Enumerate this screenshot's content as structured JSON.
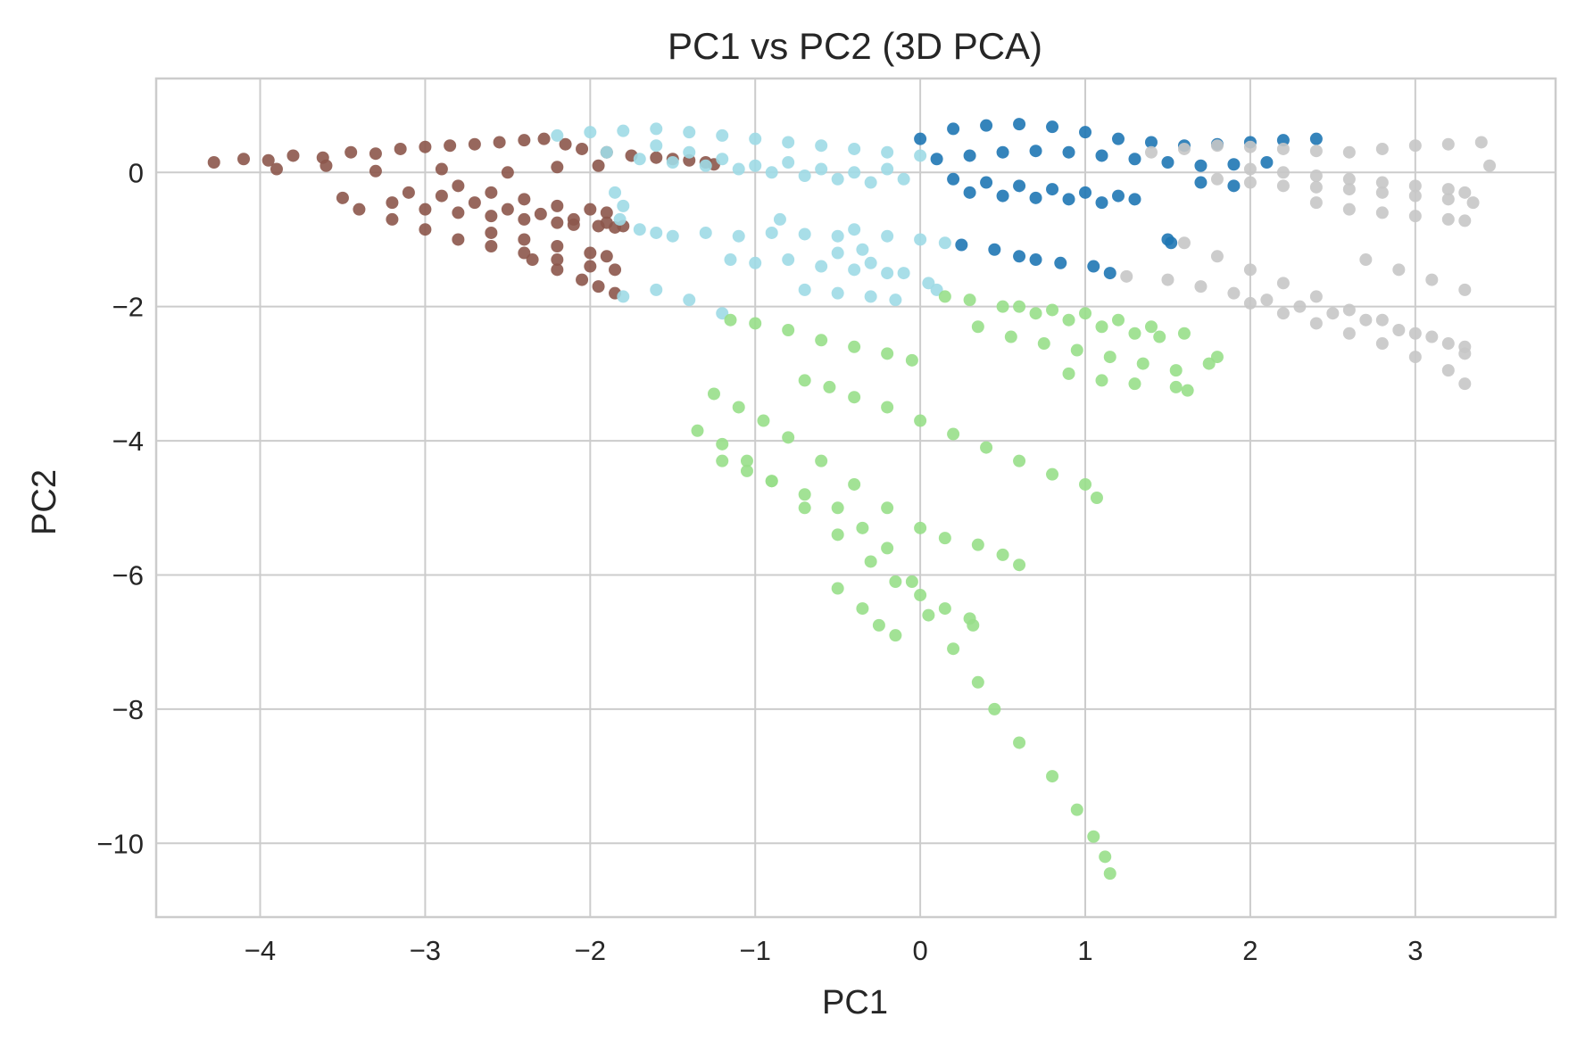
{
  "chart_data": {
    "type": "scatter",
    "title": "PC1 vs PC2 (3D PCA)",
    "xlabel": "PC1",
    "ylabel": "PC2",
    "xlim": [
      -4.63,
      3.85
    ],
    "ylim": [
      -11.1,
      1.4
    ],
    "xticks": [
      -4,
      -3,
      -2,
      -1,
      0,
      1,
      2,
      3
    ],
    "yticks": [
      0,
      -2,
      -4,
      -6,
      -8,
      -10
    ],
    "xtick_labels": [
      "−4",
      "−3",
      "−2",
      "−1",
      "0",
      "1",
      "2",
      "3"
    ],
    "ytick_labels": [
      "0",
      "−2",
      "−4",
      "−6",
      "−8",
      "−10"
    ],
    "grid": true,
    "legend": false,
    "series": [
      {
        "color": "#8c564b",
        "x": [
          -4.28,
          -4.1,
          -3.95,
          -3.8,
          -3.62,
          -3.45,
          -3.3,
          -3.15,
          -3.0,
          -2.85,
          -2.7,
          -2.55,
          -2.4,
          -2.28,
          -2.15,
          -2.05,
          -1.9,
          -1.75,
          -1.6,
          -1.5,
          -1.4,
          -1.3,
          -1.25,
          -3.5,
          -3.2,
          -3.0,
          -2.8,
          -2.6,
          -2.4,
          -2.2,
          -2.1,
          -1.95,
          -1.85,
          -3.1,
          -2.9,
          -2.7,
          -2.5,
          -2.3,
          -2.1,
          -1.9,
          -1.8,
          -3.4,
          -3.2,
          -3.0,
          -2.8,
          -2.6,
          -2.4,
          -2.2,
          -2.0,
          -1.85,
          -2.8,
          -2.6,
          -2.4,
          -2.2,
          -2.0,
          -1.9,
          -2.6,
          -2.4,
          -2.2,
          -2.0,
          -1.9,
          -2.35,
          -2.2,
          -2.05,
          -1.95,
          -1.85,
          -3.9,
          -3.6,
          -3.3,
          -2.9,
          -2.5,
          -2.2,
          -1.95
        ],
        "y": [
          0.15,
          0.2,
          0.18,
          0.25,
          0.22,
          0.3,
          0.28,
          0.35,
          0.38,
          0.4,
          0.42,
          0.45,
          0.48,
          0.5,
          0.42,
          0.35,
          0.3,
          0.25,
          0.22,
          0.2,
          0.18,
          0.15,
          0.12,
          -0.38,
          -0.45,
          -0.55,
          -0.6,
          -0.65,
          -0.7,
          -0.75,
          -0.78,
          -0.8,
          -0.82,
          -0.3,
          -0.35,
          -0.45,
          -0.55,
          -0.62,
          -0.7,
          -0.75,
          -0.8,
          -0.55,
          -0.7,
          -0.85,
          -1.0,
          -1.1,
          -1.2,
          -1.3,
          -1.4,
          -1.45,
          -0.2,
          -0.3,
          -0.4,
          -0.5,
          -0.55,
          -0.6,
          -0.9,
          -1.0,
          -1.1,
          -1.2,
          -1.25,
          -1.3,
          -1.45,
          -1.6,
          -1.7,
          -1.8,
          0.05,
          0.1,
          0.02,
          0.05,
          0.0,
          0.08,
          0.1
        ]
      },
      {
        "color": "#9edae5",
        "x": [
          -2.2,
          -2.0,
          -1.8,
          -1.6,
          -1.4,
          -1.2,
          -1.0,
          -0.8,
          -0.6,
          -0.4,
          -0.2,
          0.0,
          -1.9,
          -1.7,
          -1.5,
          -1.3,
          -1.1,
          -0.9,
          -0.7,
          -0.5,
          -0.3,
          -0.1,
          -1.6,
          -1.4,
          -1.2,
          -1.0,
          -0.8,
          -0.6,
          -0.4,
          -0.2,
          -1.85,
          -1.8,
          -1.82,
          -1.7,
          -1.6,
          -1.5,
          -1.3,
          -1.1,
          -0.9,
          -0.7,
          -0.5,
          -0.4,
          -0.2,
          0.0,
          0.15,
          -1.15,
          -1.0,
          -0.8,
          -0.6,
          -0.4,
          -0.2,
          -0.7,
          -0.5,
          -0.3,
          -1.8,
          -1.6,
          -1.4,
          -1.2,
          -0.5,
          -0.3,
          -0.1,
          0.05,
          -0.35,
          -0.85,
          0.1,
          -0.15
        ],
        "y": [
          0.55,
          0.6,
          0.62,
          0.65,
          0.6,
          0.55,
          0.5,
          0.45,
          0.4,
          0.35,
          0.3,
          0.25,
          0.3,
          0.2,
          0.15,
          0.1,
          0.05,
          0.0,
          -0.05,
          -0.1,
          -0.15,
          -0.1,
          0.4,
          0.3,
          0.2,
          0.1,
          0.15,
          0.05,
          0.0,
          0.05,
          -0.3,
          -0.5,
          -0.7,
          -0.85,
          -0.9,
          -0.95,
          -0.9,
          -0.95,
          -0.9,
          -0.92,
          -0.95,
          -0.85,
          -0.95,
          -1.0,
          -1.05,
          -1.3,
          -1.35,
          -1.3,
          -1.4,
          -1.45,
          -1.5,
          -1.75,
          -1.8,
          -1.85,
          -1.85,
          -1.75,
          -1.9,
          -2.1,
          -1.2,
          -1.35,
          -1.5,
          -1.65,
          -1.15,
          -0.7,
          -1.75,
          -1.9
        ]
      },
      {
        "color": "#1f77b4",
        "x": [
          0.0,
          0.2,
          0.4,
          0.6,
          0.8,
          1.0,
          1.2,
          1.4,
          1.6,
          1.8,
          2.0,
          2.2,
          2.4,
          0.1,
          0.3,
          0.5,
          0.7,
          0.9,
          1.1,
          1.3,
          1.5,
          1.7,
          1.9,
          2.1,
          0.2,
          0.4,
          0.6,
          0.8,
          1.0,
          1.2,
          1.3,
          1.7,
          1.9,
          0.3,
          0.5,
          0.7,
          0.9,
          1.1,
          1.5,
          1.52,
          0.25,
          0.45,
          0.6,
          0.7,
          0.85,
          1.05,
          1.15
        ],
        "y": [
          0.5,
          0.65,
          0.7,
          0.72,
          0.68,
          0.6,
          0.5,
          0.45,
          0.4,
          0.42,
          0.45,
          0.48,
          0.5,
          0.2,
          0.25,
          0.3,
          0.32,
          0.3,
          0.25,
          0.2,
          0.15,
          0.1,
          0.12,
          0.15,
          -0.1,
          -0.15,
          -0.2,
          -0.25,
          -0.3,
          -0.35,
          -0.4,
          -0.15,
          -0.2,
          -0.3,
          -0.35,
          -0.38,
          -0.4,
          -0.45,
          -1.0,
          -1.05,
          -1.08,
          -1.15,
          -1.25,
          -1.3,
          -1.35,
          -1.4,
          -1.5
        ]
      },
      {
        "color": "#c7c7c7",
        "x": [
          1.4,
          1.6,
          1.8,
          2.0,
          2.2,
          2.4,
          2.6,
          2.8,
          3.0,
          3.2,
          3.4,
          3.45,
          1.8,
          2.0,
          2.2,
          2.4,
          2.6,
          2.8,
          3.0,
          3.2,
          3.35,
          2.0,
          2.2,
          2.4,
          2.6,
          2.8,
          3.0,
          3.2,
          3.3,
          2.4,
          2.6,
          2.8,
          3.0,
          3.2,
          3.3,
          1.6,
          1.8,
          2.0,
          2.2,
          2.4,
          2.6,
          2.8,
          3.0,
          3.2,
          3.3,
          1.25,
          1.5,
          1.7,
          1.9,
          2.1,
          2.3,
          2.5,
          2.7,
          2.9,
          3.1,
          3.3,
          2.0,
          2.2,
          2.4,
          2.6,
          2.8,
          3.0,
          3.2,
          3.3,
          2.7,
          2.9,
          3.1,
          3.3
        ],
        "y": [
          0.3,
          0.35,
          0.4,
          0.38,
          0.35,
          0.32,
          0.3,
          0.35,
          0.4,
          0.42,
          0.45,
          0.1,
          -0.1,
          -0.15,
          -0.2,
          -0.22,
          -0.25,
          -0.3,
          -0.35,
          -0.4,
          -0.45,
          0.05,
          0.0,
          -0.05,
          -0.1,
          -0.15,
          -0.2,
          -0.25,
          -0.3,
          -0.45,
          -0.55,
          -0.6,
          -0.65,
          -0.7,
          -0.72,
          -1.05,
          -1.25,
          -1.45,
          -1.65,
          -1.85,
          -2.05,
          -2.2,
          -2.4,
          -2.55,
          -2.7,
          -1.55,
          -1.6,
          -1.7,
          -1.8,
          -1.9,
          -2.0,
          -2.1,
          -2.2,
          -2.35,
          -2.45,
          -2.6,
          -1.95,
          -2.1,
          -2.25,
          -2.4,
          -2.55,
          -2.75,
          -2.95,
          -3.15,
          -1.3,
          -1.45,
          -1.6,
          -1.75
        ]
      },
      {
        "color": "#98df8a",
        "x": [
          -1.15,
          -1.0,
          -0.8,
          -0.6,
          -0.4,
          -0.2,
          -0.05,
          0.15,
          0.3,
          0.5,
          0.7,
          0.9,
          1.1,
          1.3,
          1.45,
          0.35,
          0.55,
          0.75,
          0.95,
          1.15,
          1.35,
          1.55,
          1.75,
          1.8,
          0.6,
          0.8,
          1.0,
          1.2,
          1.4,
          1.6,
          0.9,
          1.1,
          1.3,
          1.55,
          1.62,
          -0.7,
          -0.55,
          -0.4,
          -0.2,
          0.0,
          0.2,
          0.4,
          0.6,
          0.8,
          1.0,
          1.07,
          -1.25,
          -1.1,
          -0.95,
          -0.8,
          -0.6,
          -0.4,
          -0.2,
          0.0,
          0.15,
          0.35,
          0.5,
          0.6,
          -1.35,
          -1.2,
          -1.05,
          -0.9,
          -0.7,
          -0.5,
          -0.3,
          -0.15,
          0.0,
          0.15,
          0.3,
          0.32,
          -1.2,
          -1.05,
          -0.9,
          -0.7,
          -0.5,
          -0.35,
          -0.2,
          -0.05,
          0.05,
          0.2,
          0.35,
          0.45,
          0.6,
          0.8,
          0.95,
          1.05,
          1.12,
          1.15,
          -0.5,
          -0.35,
          -0.25,
          -0.15
        ],
        "y": [
          -2.2,
          -2.25,
          -2.35,
          -2.5,
          -2.6,
          -2.7,
          -2.8,
          -1.85,
          -1.9,
          -2.0,
          -2.1,
          -2.2,
          -2.3,
          -2.4,
          -2.45,
          -2.3,
          -2.45,
          -2.55,
          -2.65,
          -2.75,
          -2.85,
          -2.95,
          -2.85,
          -2.75,
          -2.0,
          -2.05,
          -2.1,
          -2.2,
          -2.3,
          -2.4,
          -3.0,
          -3.1,
          -3.15,
          -3.2,
          -3.25,
          -3.1,
          -3.2,
          -3.35,
          -3.5,
          -3.7,
          -3.9,
          -4.1,
          -4.3,
          -4.5,
          -4.65,
          -4.85,
          -3.3,
          -3.5,
          -3.7,
          -3.95,
          -4.3,
          -4.65,
          -5.0,
          -5.3,
          -5.45,
          -5.55,
          -5.7,
          -5.85,
          -3.85,
          -4.05,
          -4.3,
          -4.6,
          -5.0,
          -5.4,
          -5.8,
          -6.1,
          -6.3,
          -6.5,
          -6.65,
          -6.75,
          -4.3,
          -4.45,
          -4.6,
          -4.8,
          -5.0,
          -5.3,
          -5.6,
          -6.1,
          -6.6,
          -7.1,
          -7.6,
          -8.0,
          -8.5,
          -9.0,
          -9.5,
          -9.9,
          -10.2,
          -10.45,
          -6.2,
          -6.5,
          -6.75,
          -6.9
        ]
      }
    ]
  }
}
